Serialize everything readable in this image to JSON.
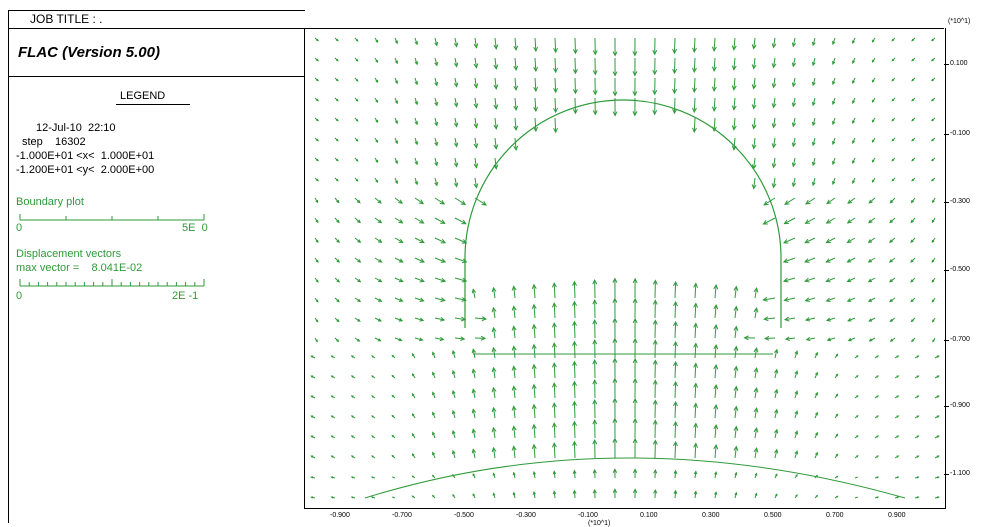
{
  "header": {
    "job_title": "JOB TITLE : ."
  },
  "sidebar": {
    "app_title": "FLAC (Version 5.00)",
    "legend_label": "LEGEND",
    "date_time": "12-Jul-10  22:10",
    "step_label": "step    16302",
    "x_range": "-1.000E+01 <x<  1.000E+01",
    "y_range": "-1.200E+01 <y<  2.000E+00",
    "boundary_plot": {
      "label": "Boundary plot",
      "scale_min": "0",
      "scale_max": "5E  0"
    },
    "displacement": {
      "label": "Displacement vectors",
      "max_vector": "max vector =    8.041E-02",
      "scale_min": "0",
      "scale_max": "2E -1"
    }
  },
  "plot": {
    "unit_top": "(*10^1)",
    "unit_bottom": "(*10^1)",
    "y_ticks": [
      "0.100",
      "-0.100",
      "-0.300",
      "-0.500",
      "-0.700",
      "-0.900",
      "-1.100"
    ],
    "x_ticks": [
      "-0.900",
      "-0.700",
      "-0.500",
      "-0.300",
      "-0.100",
      "0.100",
      "0.300",
      "0.500",
      "0.700",
      "0.900"
    ],
    "colors": {
      "vectors": "#2f9a3a",
      "axes": "#000000"
    }
  }
}
